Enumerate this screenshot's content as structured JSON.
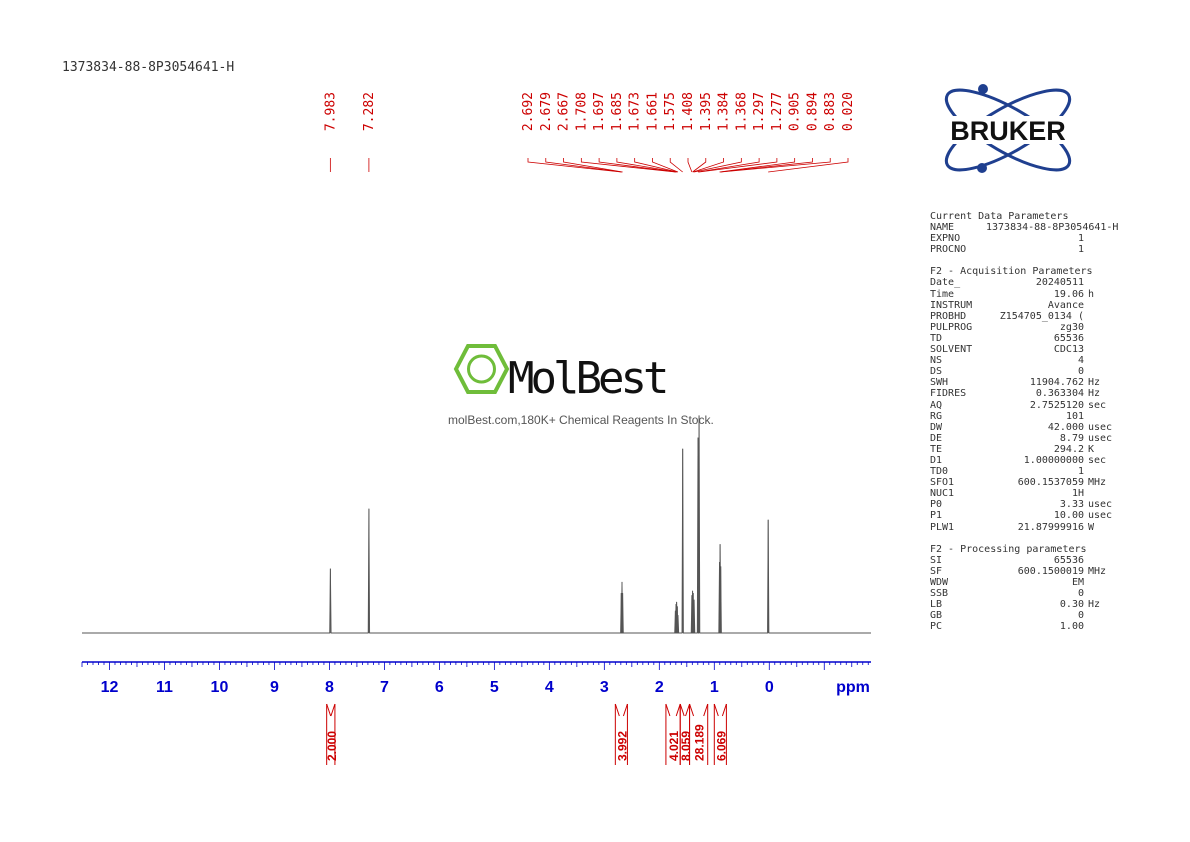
{
  "sample_id": "1373834-88-8P3054641-H",
  "watermark": {
    "brand_text": "MolBest",
    "tagline": "molBest.com,180K+ Chemical Reagents In Stock."
  },
  "logo": {
    "text": "BRUKER"
  },
  "parameters": [
    {
      "title": "Current Data Parameters",
      "rows": [
        {
          "name": "NAME",
          "value": "1373834-88-8P3054641-H",
          "unit": ""
        },
        {
          "name": "EXPNO",
          "value": "1",
          "unit": ""
        },
        {
          "name": "PROCNO",
          "value": "1",
          "unit": ""
        }
      ]
    },
    {
      "title": "F2 - Acquisition Parameters",
      "rows": [
        {
          "name": "Date_",
          "value": "20240511",
          "unit": ""
        },
        {
          "name": "Time",
          "value": "19.06",
          "unit": "h"
        },
        {
          "name": "INSTRUM",
          "value": "Avance",
          "unit": ""
        },
        {
          "name": "PROBHD",
          "value": "Z154705_0134 (",
          "unit": ""
        },
        {
          "name": "PULPROG",
          "value": "zg30",
          "unit": ""
        },
        {
          "name": "TD",
          "value": "65536",
          "unit": ""
        },
        {
          "name": "SOLVENT",
          "value": "CDC13",
          "unit": ""
        },
        {
          "name": "NS",
          "value": "4",
          "unit": ""
        },
        {
          "name": "DS",
          "value": "0",
          "unit": ""
        },
        {
          "name": "SWH",
          "value": "11904.762",
          "unit": "Hz"
        },
        {
          "name": "FIDRES",
          "value": "0.363304",
          "unit": "Hz"
        },
        {
          "name": "AQ",
          "value": "2.7525120",
          "unit": "sec"
        },
        {
          "name": "RG",
          "value": "101",
          "unit": ""
        },
        {
          "name": "DW",
          "value": "42.000",
          "unit": "usec"
        },
        {
          "name": "DE",
          "value": "8.79",
          "unit": "usec"
        },
        {
          "name": "TE",
          "value": "294.2",
          "unit": "K"
        },
        {
          "name": "D1",
          "value": "1.00000000",
          "unit": "sec"
        },
        {
          "name": "TD0",
          "value": "1",
          "unit": ""
        },
        {
          "name": "SFO1",
          "value": "600.1537059",
          "unit": "MHz"
        },
        {
          "name": "NUC1",
          "value": "1H",
          "unit": ""
        },
        {
          "name": "P0",
          "value": "3.33",
          "unit": "usec"
        },
        {
          "name": "P1",
          "value": "10.00",
          "unit": "usec"
        },
        {
          "name": "PLW1",
          "value": "21.87999916",
          "unit": "W"
        }
      ]
    },
    {
      "title": "F2 - Processing parameters",
      "rows": [
        {
          "name": "SI",
          "value": "65536",
          "unit": ""
        },
        {
          "name": "SF",
          "value": "600.1500019",
          "unit": "MHz"
        },
        {
          "name": "WDW",
          "value": "EM",
          "unit": ""
        },
        {
          "name": "SSB",
          "value": "0",
          "unit": ""
        },
        {
          "name": "LB",
          "value": "0.30",
          "unit": "Hz"
        },
        {
          "name": "GB",
          "value": "0",
          "unit": ""
        },
        {
          "name": "PC",
          "value": "1.00",
          "unit": ""
        }
      ]
    }
  ],
  "colors": {
    "axis": "#0000cc",
    "peak_label": "#cc0000",
    "spectrum": "#555555"
  },
  "chart_data": {
    "type": "line",
    "xlabel": "ppm",
    "x_range": [
      12.5,
      -1.85
    ],
    "x_ticks": [
      12,
      11,
      10,
      9,
      8,
      7,
      6,
      5,
      4,
      3,
      2,
      1,
      0
    ],
    "peak_labels": [
      "7.983",
      "7.282",
      "2.692",
      "2.679",
      "2.667",
      "1.708",
      "1.697",
      "1.685",
      "1.673",
      "1.661",
      "1.575",
      "1.408",
      "1.395",
      "1.384",
      "1.368",
      "1.297",
      "1.277",
      "0.905",
      "0.894",
      "0.883",
      "0.020"
    ],
    "peaks": [
      {
        "ppm": 7.983,
        "height": 0.29
      },
      {
        "ppm": 7.282,
        "height": 0.56
      },
      {
        "ppm": 2.692,
        "height": 0.18
      },
      {
        "ppm": 2.679,
        "height": 0.23
      },
      {
        "ppm": 2.667,
        "height": 0.18
      },
      {
        "ppm": 1.708,
        "height": 0.1
      },
      {
        "ppm": 1.697,
        "height": 0.13
      },
      {
        "ppm": 1.685,
        "height": 0.14
      },
      {
        "ppm": 1.673,
        "height": 0.12
      },
      {
        "ppm": 1.661,
        "height": 0.08
      },
      {
        "ppm": 1.575,
        "height": 0.83
      },
      {
        "ppm": 1.408,
        "height": 0.17
      },
      {
        "ppm": 1.395,
        "height": 0.19
      },
      {
        "ppm": 1.384,
        "height": 0.18
      },
      {
        "ppm": 1.368,
        "height": 0.15
      },
      {
        "ppm": 1.297,
        "height": 0.88
      },
      {
        "ppm": 1.277,
        "height": 0.98
      },
      {
        "ppm": 0.905,
        "height": 0.32
      },
      {
        "ppm": 0.894,
        "height": 0.4
      },
      {
        "ppm": 0.883,
        "height": 0.3
      },
      {
        "ppm": 0.02,
        "height": 0.51
      }
    ],
    "integrals": [
      {
        "label": "2.000",
        "from": 8.05,
        "to": 7.9
      },
      {
        "label": "3.992",
        "from": 2.8,
        "to": 2.58
      },
      {
        "label": "4.021",
        "from": 1.88,
        "to": 1.62
      },
      {
        "label": "8.059",
        "from": 1.62,
        "to": 1.45
      },
      {
        "label": "28.189",
        "from": 1.45,
        "to": 1.12
      },
      {
        "label": "6.069",
        "from": 1.0,
        "to": 0.78
      }
    ]
  }
}
